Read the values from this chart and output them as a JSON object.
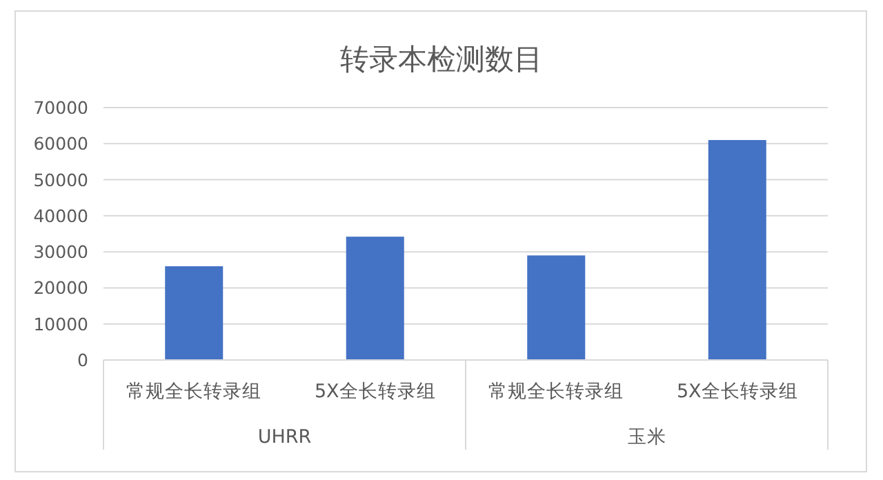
{
  "chart_data": {
    "type": "bar",
    "title": "转录本检测数目",
    "categories": [
      "常规全长转录组",
      "5X全长转录组",
      "常规全长转录组",
      "5X全长转录组"
    ],
    "values": [
      26000,
      34200,
      29000,
      61000
    ],
    "color": "#4472c4",
    "ylim": [
      0,
      70000
    ],
    "yticks": [
      0,
      10000,
      20000,
      30000,
      40000,
      50000,
      60000,
      70000
    ],
    "grid": "y",
    "annotations": [
      "UHRR",
      "玉米"
    ]
  }
}
